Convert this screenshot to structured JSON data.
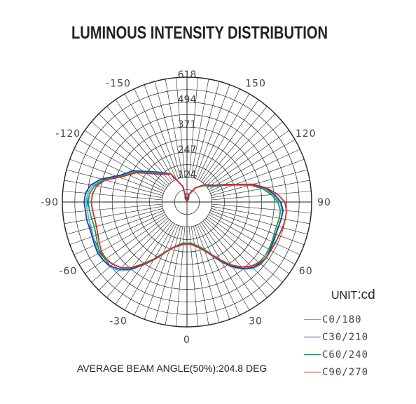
{
  "chart_data": {
    "type": "polar",
    "title": "LUMINOUS INTENSITY DISTRIBUTION",
    "unit_prefix": "UNIT",
    "unit_value": ":cd",
    "footer": "AVERAGE BEAM ANGLE(50%):204.8 DEG",
    "radial_max": 618,
    "radial_ticks": [
      {
        "value": 124,
        "label": "124"
      },
      {
        "value": 247,
        "label": "247"
      },
      {
        "value": 371,
        "label": "371"
      },
      {
        "value": 494,
        "label": "494"
      },
      {
        "value": 618,
        "label": "618"
      }
    ],
    "angle_labels": [
      {
        "angle": 0,
        "label": "0"
      },
      {
        "angle": 30,
        "label": "30"
      },
      {
        "angle": 60,
        "label": "60"
      },
      {
        "angle": 90,
        "label": "90"
      },
      {
        "angle": 120,
        "label": "120"
      },
      {
        "angle": 150,
        "label": "150"
      },
      {
        "angle": -30,
        "label": "-30"
      },
      {
        "angle": -60,
        "label": "-60"
      },
      {
        "angle": -90,
        "label": "-90"
      },
      {
        "angle": -120,
        "label": "-120"
      },
      {
        "angle": -150,
        "label": "-150"
      }
    ],
    "series": [
      {
        "name": "C0/180",
        "color": "#5ab8d6",
        "angles": [
          -180,
          -165,
          -150,
          -135,
          -120,
          -112,
          -105,
          -100,
          -95,
          -90,
          -85,
          -80,
          -75,
          -70,
          -65,
          -60,
          -55,
          -50,
          -45,
          -40,
          -35,
          -30,
          -25,
          -20,
          -15,
          -10,
          -5,
          0,
          5,
          10,
          15,
          20,
          25,
          30,
          35,
          40,
          45,
          50,
          55,
          60,
          65,
          70,
          75,
          80,
          85,
          90,
          95,
          100,
          105,
          110,
          115,
          120,
          135,
          150,
          165,
          180
        ],
        "values": [
          0,
          80,
          160,
          200,
          300,
          350,
          430,
          475,
          495,
          500,
          495,
          495,
          490,
          495,
          500,
          505,
          505,
          500,
          480,
          440,
          380,
          330,
          285,
          250,
          230,
          215,
          205,
          210,
          205,
          215,
          230,
          255,
          295,
          345,
          395,
          435,
          465,
          480,
          480,
          475,
          475,
          470,
          470,
          475,
          475,
          460,
          430,
          390,
          330,
          250,
          200,
          160,
          120,
          80,
          40,
          0
        ]
      },
      {
        "name": "C30/210",
        "color": "#1f3f9f",
        "angles": [
          -180,
          -165,
          -150,
          -135,
          -120,
          -112,
          -105,
          -100,
          -95,
          -90,
          -85,
          -80,
          -75,
          -70,
          -65,
          -60,
          -55,
          -50,
          -45,
          -40,
          -35,
          -30,
          -25,
          -20,
          -15,
          -10,
          -5,
          0,
          5,
          10,
          15,
          20,
          25,
          30,
          35,
          40,
          45,
          50,
          55,
          60,
          65,
          70,
          75,
          80,
          85,
          90,
          95,
          100,
          105,
          110,
          115,
          120,
          135,
          150,
          165,
          180
        ],
        "values": [
          0,
          80,
          160,
          210,
          310,
          355,
          440,
          485,
          505,
          510,
          505,
          505,
          500,
          500,
          505,
          510,
          505,
          495,
          470,
          435,
          380,
          330,
          285,
          250,
          228,
          215,
          205,
          208,
          205,
          215,
          230,
          255,
          290,
          340,
          390,
          430,
          460,
          475,
          480,
          475,
          470,
          468,
          470,
          475,
          478,
          465,
          435,
          395,
          335,
          255,
          205,
          165,
          120,
          80,
          40,
          0
        ]
      },
      {
        "name": "C60/240",
        "color": "#1a9a55",
        "angles": [
          -180,
          -165,
          -150,
          -135,
          -120,
          -112,
          -105,
          -100,
          -95,
          -90,
          -85,
          -80,
          -75,
          -70,
          -65,
          -60,
          -55,
          -50,
          -45,
          -40,
          -35,
          -30,
          -25,
          -20,
          -15,
          -10,
          -5,
          0,
          5,
          10,
          15,
          20,
          25,
          30,
          35,
          40,
          45,
          50,
          55,
          60,
          65,
          70,
          75,
          80,
          85,
          90,
          95,
          100,
          105,
          110,
          115,
          120,
          135,
          150,
          165,
          180
        ],
        "values": [
          0,
          80,
          160,
          195,
          295,
          345,
          425,
          465,
          485,
          490,
          485,
          480,
          475,
          480,
          490,
          500,
          495,
          480,
          460,
          425,
          370,
          325,
          280,
          248,
          228,
          213,
          203,
          205,
          203,
          213,
          228,
          250,
          285,
          330,
          380,
          420,
          450,
          465,
          470,
          468,
          465,
          460,
          460,
          465,
          465,
          450,
          420,
          380,
          325,
          245,
          195,
          155,
          115,
          80,
          40,
          0
        ]
      },
      {
        "name": "C90/270",
        "color": "#d42b2b",
        "angles": [
          -180,
          -165,
          -150,
          -135,
          -120,
          -112,
          -105,
          -100,
          -95,
          -90,
          -85,
          -80,
          -75,
          -70,
          -65,
          -60,
          -55,
          -50,
          -45,
          -40,
          -35,
          -30,
          -25,
          -20,
          -15,
          -10,
          -5,
          0,
          5,
          10,
          15,
          20,
          25,
          30,
          35,
          40,
          45,
          50,
          55,
          60,
          65,
          70,
          75,
          80,
          85,
          90,
          95,
          100,
          105,
          110,
          115,
          120,
          135,
          150,
          165,
          180
        ],
        "values": [
          0,
          80,
          160,
          195,
          290,
          340,
          420,
          455,
          470,
          475,
          470,
          465,
          465,
          470,
          480,
          490,
          490,
          480,
          460,
          425,
          375,
          330,
          285,
          250,
          230,
          220,
          210,
          208,
          210,
          220,
          235,
          258,
          290,
          335,
          382,
          420,
          450,
          470,
          480,
          480,
          482,
          485,
          490,
          495,
          495,
          485,
          450,
          400,
          340,
          255,
          200,
          160,
          120,
          80,
          40,
          0
        ]
      }
    ]
  }
}
